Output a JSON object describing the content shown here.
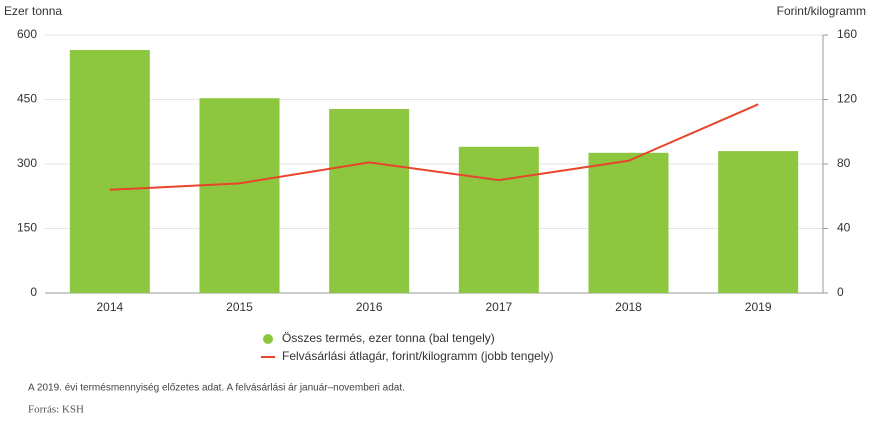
{
  "chart_data": {
    "type": "bar_line",
    "y_label": "Ezer tonna",
    "y2_label": "Forint/kilogramm",
    "categories": [
      "2014",
      "2015",
      "2016",
      "2017",
      "2018",
      "2019"
    ],
    "series": [
      {
        "name": "Összes termés, ezer tonna (bal tengely)",
        "color": "#8dc63f",
        "type": "bar",
        "values": [
          565,
          453,
          428,
          340,
          326,
          330
        ]
      },
      {
        "name": "Felvásárlási átlagár, forint/kilogramm (jobb tengely)",
        "color": "#e8452c",
        "type": "line",
        "axis": "y2",
        "values": [
          64,
          68,
          81,
          70,
          82,
          117
        ]
      }
    ],
    "ylim": [
      0,
      600
    ],
    "yticks": [
      0,
      150,
      300,
      450,
      600
    ],
    "y2lim": [
      0,
      160
    ],
    "y2ticks": [
      0,
      40,
      80,
      120,
      160
    ],
    "grid": true,
    "notes": [
      "A 2019. évi termésmennyiség előzetes adat. A felvásárlási ár január–novemberi adat.",
      "Forrás: KSH"
    ]
  }
}
